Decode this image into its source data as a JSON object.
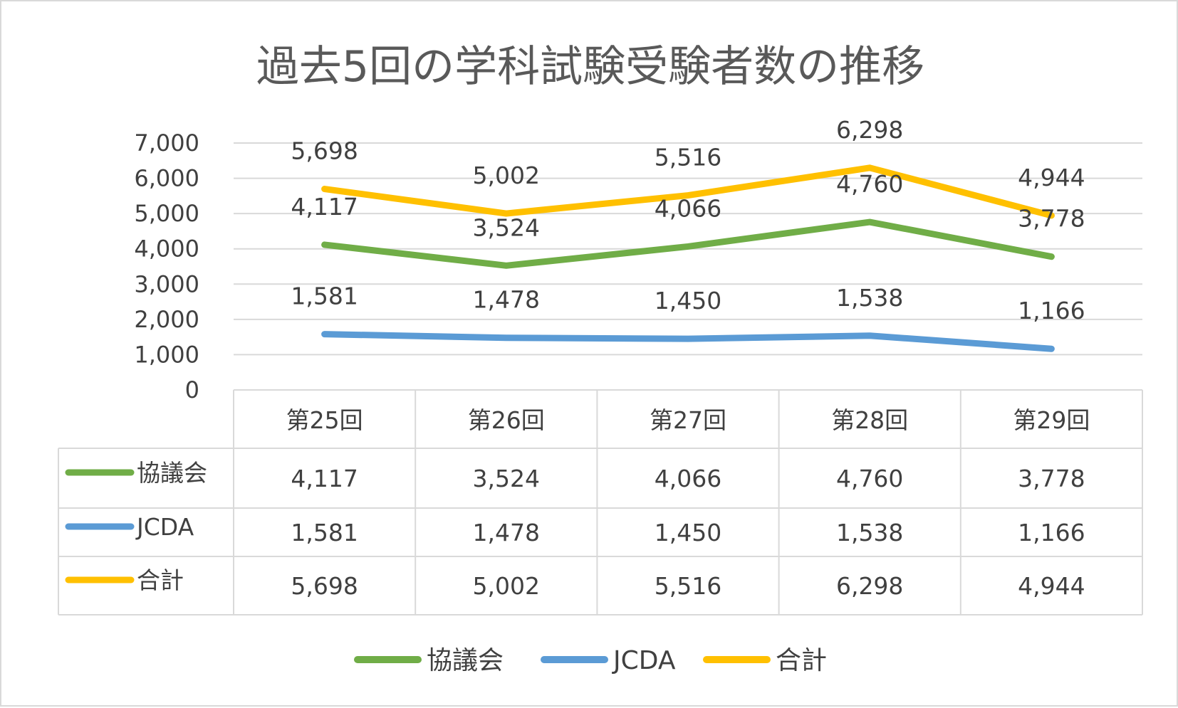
{
  "chart_data": {
    "type": "line",
    "title": "過去5回の学科試験受験者数の推移",
    "categories": [
      "第25回",
      "第26回",
      "第27回",
      "第28回",
      "第29回"
    ],
    "ylim": [
      0,
      7000
    ],
    "y_ticks": [
      "0",
      "1,000",
      "2,000",
      "3,000",
      "4,000",
      "5,000",
      "6,000",
      "7,000"
    ],
    "grid": true,
    "data_table": true,
    "legend_position": "bottom",
    "series": [
      {
        "name": "協議会",
        "color": "#70ad47",
        "values": [
          4117,
          3524,
          4066,
          4760,
          3778
        ],
        "labels": [
          "4,117",
          "3,524",
          "4,066",
          "4,760",
          "3,778"
        ]
      },
      {
        "name": "JCDA",
        "color": "#5b9bd5",
        "values": [
          1581,
          1478,
          1450,
          1538,
          1166
        ],
        "labels": [
          "1,581",
          "1,478",
          "1,450",
          "1,538",
          "1,166"
        ]
      },
      {
        "name": "合計",
        "color": "#ffc000",
        "values": [
          5698,
          5002,
          5516,
          6298,
          4944
        ],
        "labels": [
          "5,698",
          "5,002",
          "5,516",
          "6,298",
          "4,944"
        ]
      }
    ]
  }
}
